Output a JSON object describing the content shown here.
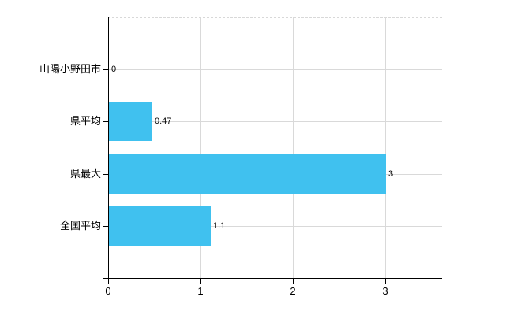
{
  "chart_data": {
    "type": "bar",
    "orientation": "horizontal",
    "title": "",
    "xlabel": "",
    "ylabel": "",
    "categories": [
      "山陽小野田市",
      "県平均",
      "県最大",
      "全国平均"
    ],
    "values": [
      0,
      0.47,
      3,
      1.1
    ],
    "value_labels": [
      "0",
      "0.47",
      "3",
      "1.1"
    ],
    "xticks": [
      0,
      1,
      2,
      3
    ],
    "xtick_labels": [
      "0",
      "1",
      "2",
      "3"
    ],
    "xlim": [
      0,
      3.6
    ],
    "grid": true,
    "legend": "none",
    "colors": {
      "bar_fill": "#40c1ef",
      "gridline": "#d9d9d9",
      "top_border": "#d8d8d8",
      "axis": "#000000",
      "text": "#000000",
      "background": "#ffffff"
    }
  }
}
